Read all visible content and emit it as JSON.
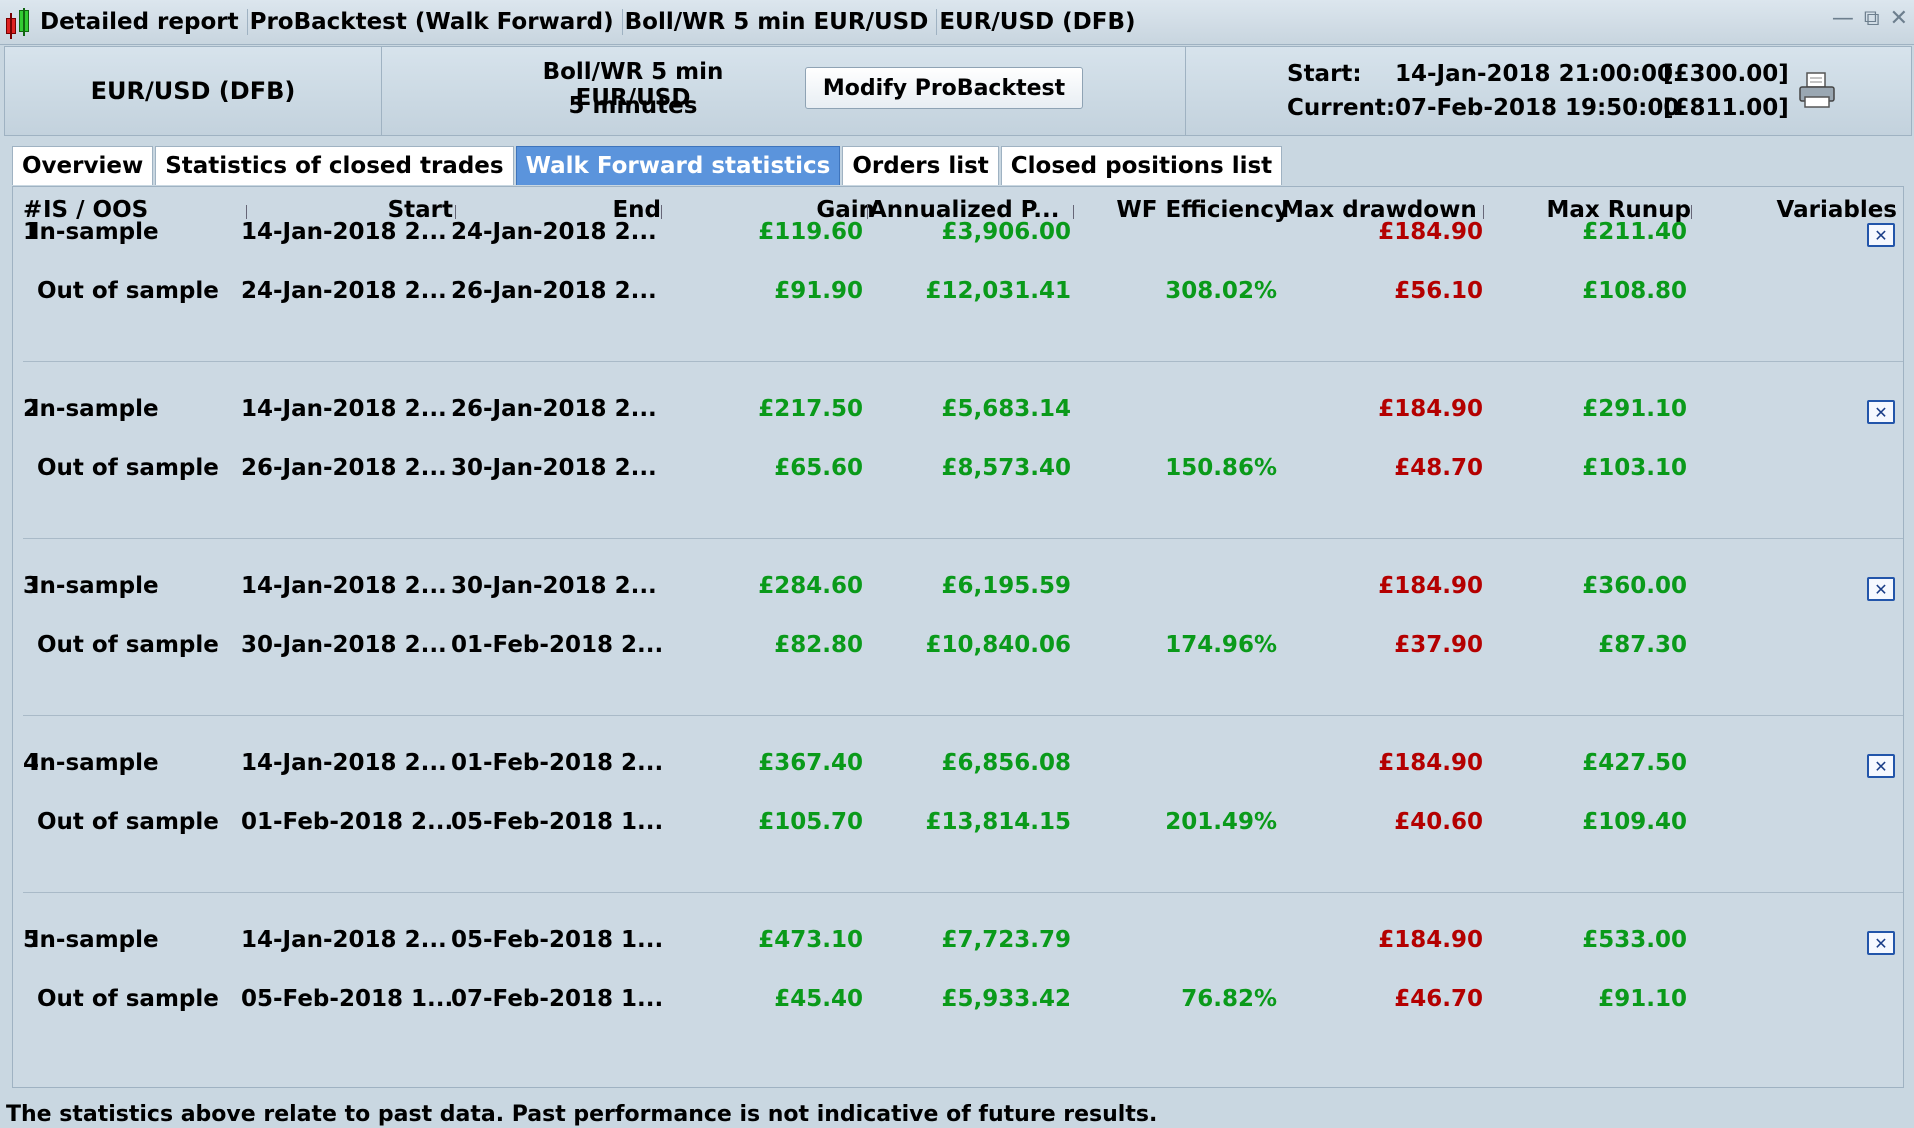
{
  "titlebar": {
    "segments": [
      "Detailed report",
      "ProBacktest (Walk Forward)",
      "Boll/WR 5 min EUR/USD",
      "EUR/USD (DFB)"
    ]
  },
  "header": {
    "instrument": "EUR/USD (DFB)",
    "strategy_name": "Boll/WR 5 min EUR/USD",
    "period": "5 minutes",
    "modify_button": "Modify ProBacktest",
    "start_label": "Start:",
    "start_value": "14-Jan-2018 21:00:00",
    "start_amount": "[£300.00]",
    "current_label": "Current:",
    "current_value": "07-Feb-2018 19:50:00",
    "current_amount": "[£811.00]"
  },
  "tabs": [
    {
      "label": "Overview",
      "active": false
    },
    {
      "label": "Statistics of closed trades",
      "active": false
    },
    {
      "label": "Walk Forward statistics",
      "active": true
    },
    {
      "label": "Orders list",
      "active": false
    },
    {
      "label": "Closed positions list",
      "active": false
    }
  ],
  "table": {
    "headers": [
      "#",
      "IS / OOS",
      "Start",
      "End",
      "Gain",
      "Annualized P...",
      "WF Efficiency",
      "Max drawdown",
      "Max Runup",
      "Variables"
    ],
    "groups": [
      {
        "num": "1",
        "is": {
          "label": "In-sample",
          "start": "14-Jan-2018 2...",
          "end": "24-Jan-2018 2...",
          "gain": "£119.60",
          "annualized": "£3,906.00",
          "wf": "",
          "dd": "£184.90",
          "runup": "£211.40"
        },
        "oos": {
          "label": "Out of sample",
          "start": "24-Jan-2018 2...",
          "end": "26-Jan-2018 2...",
          "gain": "£91.90",
          "annualized": "£12,031.41",
          "wf": "308.02%",
          "dd": "£56.10",
          "runup": "£108.80"
        }
      },
      {
        "num": "2",
        "is": {
          "label": "In-sample",
          "start": "14-Jan-2018 2...",
          "end": "26-Jan-2018 2...",
          "gain": "£217.50",
          "annualized": "£5,683.14",
          "wf": "",
          "dd": "£184.90",
          "runup": "£291.10"
        },
        "oos": {
          "label": "Out of sample",
          "start": "26-Jan-2018 2...",
          "end": "30-Jan-2018 2...",
          "gain": "£65.60",
          "annualized": "£8,573.40",
          "wf": "150.86%",
          "dd": "£48.70",
          "runup": "£103.10"
        }
      },
      {
        "num": "3",
        "is": {
          "label": "In-sample",
          "start": "14-Jan-2018 2...",
          "end": "30-Jan-2018 2...",
          "gain": "£284.60",
          "annualized": "£6,195.59",
          "wf": "",
          "dd": "£184.90",
          "runup": "£360.00"
        },
        "oos": {
          "label": "Out of sample",
          "start": "30-Jan-2018 2...",
          "end": "01-Feb-2018 2...",
          "gain": "£82.80",
          "annualized": "£10,840.06",
          "wf": "174.96%",
          "dd": "£37.90",
          "runup": "£87.30"
        }
      },
      {
        "num": "4",
        "is": {
          "label": "In-sample",
          "start": "14-Jan-2018 2...",
          "end": "01-Feb-2018 2...",
          "gain": "£367.40",
          "annualized": "£6,856.08",
          "wf": "",
          "dd": "£184.90",
          "runup": "£427.50"
        },
        "oos": {
          "label": "Out of sample",
          "start": "01-Feb-2018 2...",
          "end": "05-Feb-2018 1...",
          "gain": "£105.70",
          "annualized": "£13,814.15",
          "wf": "201.49%",
          "dd": "£40.60",
          "runup": "£109.40"
        }
      },
      {
        "num": "5",
        "is": {
          "label": "In-sample",
          "start": "14-Jan-2018 2...",
          "end": "05-Feb-2018 1...",
          "gain": "£473.10",
          "annualized": "£7,723.79",
          "wf": "",
          "dd": "£184.90",
          "runup": "£533.00"
        },
        "oos": {
          "label": "Out of sample",
          "start": "05-Feb-2018 1...",
          "end": "07-Feb-2018 1...",
          "gain": "£45.40",
          "annualized": "£5,933.42",
          "wf": "76.82%",
          "dd": "£46.70",
          "runup": "£91.10"
        }
      }
    ]
  },
  "footer": "The statistics above relate to past data. Past performance is not indicative of future results.",
  "icons": {
    "app": "candlestick-icon",
    "print": "printer-icon",
    "variables": "variables-icon",
    "window": [
      "minimize-icon",
      "restore-icon",
      "close-icon"
    ]
  },
  "colors": {
    "gain": "#0a9a1a",
    "loss": "#b40000",
    "active_tab": "#5b94dc",
    "background": "#c9d7e1"
  }
}
